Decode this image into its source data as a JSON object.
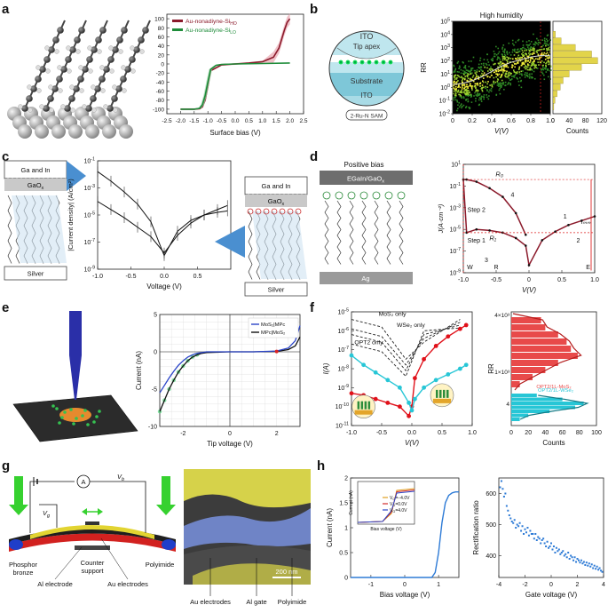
{
  "panels": {
    "a": {
      "letter": "a",
      "chart_data": {
        "type": "line",
        "xlabel": "Surface bias (V)",
        "ylabel": "",
        "xlim": [
          -2.5,
          2.5
        ],
        "ylim": [
          -110,
          110
        ],
        "xticks": [
          "-2.5",
          "-2.0",
          "-1.5",
          "-1.0",
          "-0.5",
          "0.0",
          "0.5",
          "1.0",
          "1.5",
          "2.0",
          "2.5"
        ],
        "yticks": [
          "-100",
          "-80",
          "-60",
          "-40",
          "-20",
          "0",
          "20",
          "40",
          "60",
          "80",
          "100"
        ],
        "legend_position": "top-left",
        "series": [
          {
            "name": "Au-nonadiyne-Si",
            "sub": "HO",
            "color": "#8b1a2b",
            "x": [
              -2.0,
              -1.5,
              -1.3,
              -1.2,
              -1.1,
              -1.0,
              -0.9,
              -0.5,
              0.0,
              0.5,
              1.0,
              1.4,
              1.6,
              1.7,
              1.8,
              1.9,
              2.0
            ],
            "y": [
              -100,
              -100,
              -99,
              -95,
              -80,
              -50,
              -15,
              -2,
              0,
              2,
              5,
              15,
              35,
              55,
              75,
              92,
              100
            ]
          },
          {
            "name": "Au-nonadiyne-Si",
            "sub": "LO",
            "color": "#1e8c3a",
            "x": [
              -2.0,
              -1.5,
              -1.3,
              -1.2,
              -1.1,
              -1.0,
              -0.9,
              -0.7,
              -0.5,
              0.0,
              1.0,
              2.0
            ],
            "y": [
              -100,
              -100,
              -98,
              -90,
              -70,
              -40,
              -12,
              -3,
              -1,
              0,
              1,
              2
            ]
          }
        ]
      }
    },
    "b": {
      "letter": "b",
      "schematic": {
        "top": "ITO",
        "tip": "Tip apex",
        "substrate": "Substrate",
        "bottom": "ITO",
        "sam_tag": "2-Ru-N SAM"
      },
      "chart_data": {
        "type": "heatmap",
        "title": "High humidity",
        "xlabel": "V(V)",
        "ylabel": "RR",
        "xlim": [
          0,
          1.0
        ],
        "xticks": [
          "0",
          "0.2",
          "0.4",
          "0.6",
          "0.8",
          "1.0"
        ],
        "ylog": true,
        "ylim_exp": [
          -2,
          5
        ],
        "yticks": [
          "10^-2",
          "10^-1",
          "10^0",
          "10^1",
          "10^2",
          "10^3",
          "10^4",
          "10^5"
        ],
        "trend_x": [
          0,
          0.1,
          0.2,
          0.3,
          0.4,
          0.5,
          0.6,
          0.7,
          0.8,
          0.9,
          1.0
        ],
        "trend_y_exp": [
          0.2,
          0.3,
          0.5,
          0.8,
          1.2,
          1.6,
          1.9,
          2.1,
          2.3,
          2.4,
          2.4
        ],
        "hist": {
          "xlabel": "Counts",
          "xticks": [
            "0",
            "40",
            "80",
            "120"
          ],
          "xmax": 120,
          "bins_exp": [
            -1.5,
            -1.0,
            -0.5,
            0,
            0.5,
            1.0,
            1.5,
            2.0,
            2.5,
            3.0,
            3.5,
            4.0
          ],
          "counts": [
            2,
            5,
            10,
            18,
            25,
            40,
            70,
            110,
            95,
            55,
            20,
            6
          ]
        }
      }
    },
    "c": {
      "letter": "c",
      "left_box": {
        "top": "Ga and In",
        "oxide": "GaO",
        "oxide_sub": "x",
        "bottom": "Silver"
      },
      "right_box": {
        "top": "Ga and In",
        "oxide": "GaO",
        "oxide_sub": "x",
        "bottom": "Silver"
      },
      "chart_data": {
        "type": "line",
        "xlabel": "Voltage (V)",
        "ylabel": "|Current density| (A/cm²)",
        "xlim": [
          -1.0,
          1.0
        ],
        "xticks": [
          "-1.0",
          "-0.5",
          "0.0",
          "0.5"
        ],
        "ylog": true,
        "ylim_exp": [
          -9,
          -1
        ],
        "yticks": [
          "10^-1",
          "10^-3",
          "10^-5",
          "10^-7",
          "10^-9"
        ],
        "series": [
          {
            "name": "",
            "x": [
              -1.0,
              -0.8,
              -0.6,
              -0.4,
              -0.2,
              0.0,
              0.2,
              0.4,
              0.6,
              0.8,
              0.95
            ],
            "y_exp": [
              -1.8,
              -2.5,
              -3.3,
              -4.2,
              -5.5,
              -8.0,
              -6.2,
              -5.4,
              -5.0,
              -4.8,
              -4.7
            ]
          },
          {
            "name": "",
            "x": [
              -1.0,
              -0.8,
              -0.6,
              -0.4,
              -0.2,
              0.0,
              0.2,
              0.4,
              0.6,
              0.8,
              0.95
            ],
            "y_exp": [
              -4.0,
              -4.6,
              -5.2,
              -5.9,
              -6.6,
              -7.8,
              -6.5,
              -5.6,
              -5.0,
              -4.6,
              -4.3
            ]
          }
        ]
      }
    },
    "d": {
      "letter": "d",
      "schematic": {
        "title": "Positive bias",
        "top": "EGaIn/GaO",
        "top_sub": "x",
        "bottom": "Ag"
      },
      "chart_data": {
        "type": "line",
        "xlabel": "V(V)",
        "ylabel": "J(A·cm⁻²)",
        "xlim": [
          -1.0,
          1.0
        ],
        "xticks": [
          "-1.0",
          "-0.5",
          "0",
          "0.5",
          "1.0"
        ],
        "ylog": true,
        "ylim_exp": [
          -9,
          1
        ],
        "yticks": [
          "10^1",
          "10^-1",
          "10^-3",
          "10^-5",
          "10^-7",
          "10^-9"
        ],
        "annotations": [
          "R₀",
          "R₁",
          "Step 2",
          "Step 1",
          "1",
          "2",
          "3",
          "4",
          "Iₘₘ",
          "W",
          "R",
          "E"
        ],
        "series": [
          {
            "name": "",
            "x": [
              -0.05,
              -0.2,
              -0.4,
              -0.6,
              -0.8,
              -0.95,
              -1.0,
              -0.95,
              -0.8,
              -0.6,
              -0.4,
              -0.2,
              -0.05,
              0.0,
              0.2,
              0.4,
              0.6,
              0.8,
              1.0
            ],
            "y_exp": [
              -5.5,
              -3.5,
              -2.0,
              -1.2,
              -0.6,
              -0.4,
              -0.4,
              -5.3,
              -5.0,
              -5.1,
              -5.3,
              -5.8,
              -6.5,
              -8.3,
              -6.0,
              -5.2,
              -4.6,
              -4.2,
              -3.8
            ]
          }
        ]
      }
    },
    "e": {
      "letter": "e",
      "chart_data": {
        "type": "line",
        "xlabel": "Tip voltage (V)",
        "ylabel": "Current (nA)",
        "xlim": [
          -3,
          3
        ],
        "ylim": [
          -10,
          5
        ],
        "xticks": [
          "-2",
          "0",
          "2"
        ],
        "yticks": [
          "5",
          "0",
          "-5",
          "-10"
        ],
        "legend_position": "top-right",
        "series": [
          {
            "name": "MoS₂|MPc",
            "color": "#2b45c8",
            "x": [
              -3.0,
              -2.8,
              -2.6,
              -2.4,
              -2.2,
              -2.0,
              -1.8,
              -1.6,
              -1.4,
              -1.2,
              -1.0,
              0.0,
              1.0,
              2.0,
              2.5,
              2.8,
              3.0
            ],
            "y": [
              -5.5,
              -4.5,
              -3.5,
              -2.6,
              -1.8,
              -1.2,
              -0.7,
              -0.4,
              -0.2,
              -0.1,
              0,
              0,
              0,
              0.1,
              0.5,
              1.5,
              3.5
            ]
          },
          {
            "name": "MPc|MoS₂",
            "color": "#111111",
            "x": [
              -3.0,
              -2.8,
              -2.6,
              -2.4,
              -2.2,
              -2.0,
              -1.8,
              -1.6,
              -1.4,
              -1.2,
              -1.0,
              0.0,
              1.0,
              2.0,
              2.5,
              2.8,
              3.0
            ],
            "y": [
              -8.0,
              -6.5,
              -5.0,
              -3.8,
              -2.7,
              -1.9,
              -1.2,
              -0.7,
              -0.4,
              -0.2,
              -0.1,
              0,
              0,
              0.05,
              0.3,
              0.8,
              2.0
            ]
          }
        ]
      }
    },
    "f": {
      "letter": "f",
      "labels": {
        "mos2": "MoS₂ only",
        "wse2": "WSe₂ only",
        "opt2": "OPT2 only"
      },
      "chart_data": [
        {
          "type": "line",
          "xlabel": "V(V)",
          "ylabel": "I(A)",
          "xlim": [
            -1.0,
            1.0
          ],
          "xticks": [
            "-1.0",
            "-0.5",
            "0.0",
            "0.5",
            "1.0"
          ],
          "ylog": true,
          "ylim_exp": [
            -11,
            -5
          ],
          "yticks": [
            "10^-5",
            "10^-6",
            "10^-7",
            "10^-8",
            "10^-9",
            "10^-10",
            "10^-11"
          ],
          "series": [
            {
              "name": "",
              "color": "#e0111a",
              "x": [
                -1.0,
                -0.8,
                -0.6,
                -0.4,
                -0.2,
                -0.05,
                0.0,
                0.05,
                0.2,
                0.4,
                0.6,
                0.8,
                0.9
              ],
              "y_exp": [
                -9.3,
                -9.4,
                -9.6,
                -9.8,
                -10.0,
                -10.5,
                -10.0,
                -8.5,
                -7.5,
                -6.8,
                -6.3,
                -5.9,
                -5.7
              ]
            },
            {
              "name": "",
              "color": "#27c6d6",
              "x": [
                -1.0,
                -0.8,
                -0.6,
                -0.4,
                -0.2,
                -0.05,
                0.0,
                0.05,
                0.2,
                0.4,
                0.6,
                0.8,
                0.9
              ],
              "y_exp": [
                -7.3,
                -7.8,
                -8.2,
                -8.6,
                -9.0,
                -9.8,
                -10.2,
                -9.6,
                -9.0,
                -8.6,
                -8.3,
                -8.0,
                -7.8
              ]
            }
          ]
        },
        {
          "type": "bar",
          "xlabel": "Counts",
          "ylabel": "RR",
          "xticks": [
            "0",
            "20",
            "40",
            "60",
            "80",
            "100"
          ],
          "yticks": [
            "4×10³",
            "1×10³",
            "4"
          ],
          "series": [
            {
              "name": "OPT2/1L-MoS₂",
              "color": "#e84a4a",
              "bins": [
                3400,
                3000,
                2600,
                2200,
                1800,
                1400,
                1000,
                700,
                400,
                200
              ],
              "counts": [
                35,
                40,
                55,
                65,
                70,
                78,
                55,
                40,
                25,
                10
              ]
            },
            {
              "name": "OPT2/1L-WSe₂",
              "color": "#27c6d6",
              "bins": [
                10,
                8,
                6,
                5,
                4,
                3,
                2
              ],
              "counts": [
                30,
                60,
                85,
                75,
                45,
                20,
                10
              ]
            }
          ]
        }
      ]
    },
    "g": {
      "letter": "g",
      "labels": {
        "vb": "V",
        "vb_sub": "b",
        "vg": "V",
        "vg_sub": "g",
        "ammeter": "A",
        "phosphor": "Phosphor\nbronze",
        "counter": "Counter\nsupport",
        "polyimide": "Polyimide",
        "al_electrode": "Al electrode",
        "au_electrodes": "Au electrodes"
      },
      "sem": {
        "scale": "200 nm",
        "au": "Au electrodes",
        "al": "Al gate",
        "poly": "Polyimide"
      }
    },
    "h": {
      "letter": "h",
      "chart_data": [
        {
          "type": "line",
          "xlabel": "Bias voltage (V)",
          "ylabel": "Current (nA)",
          "xlim": [
            -1.6,
            1.6
          ],
          "ylim": [
            0,
            2.0
          ],
          "xticks": [
            "-1",
            "0",
            "1"
          ],
          "yticks": [
            "0",
            "0.5",
            "1",
            "1.5",
            "2"
          ],
          "series": [
            {
              "name": "",
              "color": "#2e7bd6",
              "x": [
                -1.6,
                -1.0,
                -0.5,
                0.0,
                0.5,
                0.8,
                0.9,
                1.0,
                1.1,
                1.2,
                1.3,
                1.4,
                1.5,
                1.6
              ],
              "y": [
                0,
                0,
                0,
                0,
                0,
                0,
                0.1,
                0.5,
                1.1,
                1.5,
                1.65,
                1.7,
                1.72,
                1.72
              ]
            }
          ],
          "inset": {
            "xlabel": "Bias voltage (V)",
            "ylabel": "Current (nA)",
            "legend": [
              "V₃=−4.0V",
              "V₃=0.0V",
              "V₃=4.0V"
            ],
            "legend_labels": [
              {
                "pre": "V",
                "sub": "G",
                "post": "=−4.0V",
                "color": "#e0a020"
              },
              {
                "pre": "V",
                "sub": "G",
                "post": "=0.0V",
                "color": "#d12b2b"
              },
              {
                "pre": "V",
                "sub": "G",
                "post": "=4.0V",
                "color": "#2b45c8"
              }
            ]
          }
        },
        {
          "type": "scatter",
          "xlabel": "Gate voltage (V)",
          "ylabel": "Rectification ratio",
          "xlim": [
            -4,
            4
          ],
          "ylim": [
            330,
            650
          ],
          "xticks": [
            "-4",
            "-2",
            "0",
            "2",
            "4"
          ],
          "yticks": [
            "400",
            "500",
            "600"
          ],
          "color": "#2e7bd6",
          "x": [
            -3.9,
            -3.8,
            -3.7,
            -3.6,
            -3.5,
            -3.4,
            -3.3,
            -3.2,
            -3.1,
            -3.0,
            -2.9,
            -2.8,
            -2.7,
            -2.6,
            -2.5,
            -2.4,
            -2.3,
            -2.2,
            -2.1,
            -2.0,
            -1.9,
            -1.8,
            -1.7,
            -1.6,
            -1.5,
            -1.4,
            -1.3,
            -1.2,
            -1.1,
            -1.0,
            -0.9,
            -0.8,
            -0.7,
            -0.6,
            -0.5,
            -0.4,
            -0.3,
            -0.2,
            -0.1,
            0.0,
            0.1,
            0.2,
            0.3,
            0.4,
            0.5,
            0.6,
            0.7,
            0.8,
            0.9,
            1.0,
            1.1,
            1.2,
            1.3,
            1.4,
            1.5,
            1.6,
            1.7,
            1.8,
            1.9,
            2.0,
            2.1,
            2.2,
            2.3,
            2.4,
            2.5,
            2.6,
            2.7,
            2.8,
            2.9,
            3.0,
            3.1,
            3.2,
            3.3,
            3.4,
            3.5,
            3.6,
            3.7,
            3.8,
            3.9
          ],
          "y": [
            620,
            640,
            615,
            590,
            600,
            560,
            545,
            530,
            520,
            510,
            505,
            515,
            490,
            500,
            495,
            505,
            480,
            495,
            470,
            485,
            475,
            490,
            465,
            480,
            470,
            470,
            455,
            470,
            450,
            460,
            455,
            440,
            450,
            455,
            440,
            430,
            445,
            425,
            430,
            440,
            420,
            430,
            410,
            425,
            415,
            420,
            405,
            410,
            415,
            400,
            405,
            395,
            410,
            390,
            400,
            395,
            385,
            395,
            380,
            390,
            385,
            378,
            385,
            375,
            380,
            370,
            378,
            368,
            375,
            365,
            372,
            360,
            368,
            358,
            365,
            355,
            360,
            352,
            348
          ]
        }
      ]
    }
  }
}
